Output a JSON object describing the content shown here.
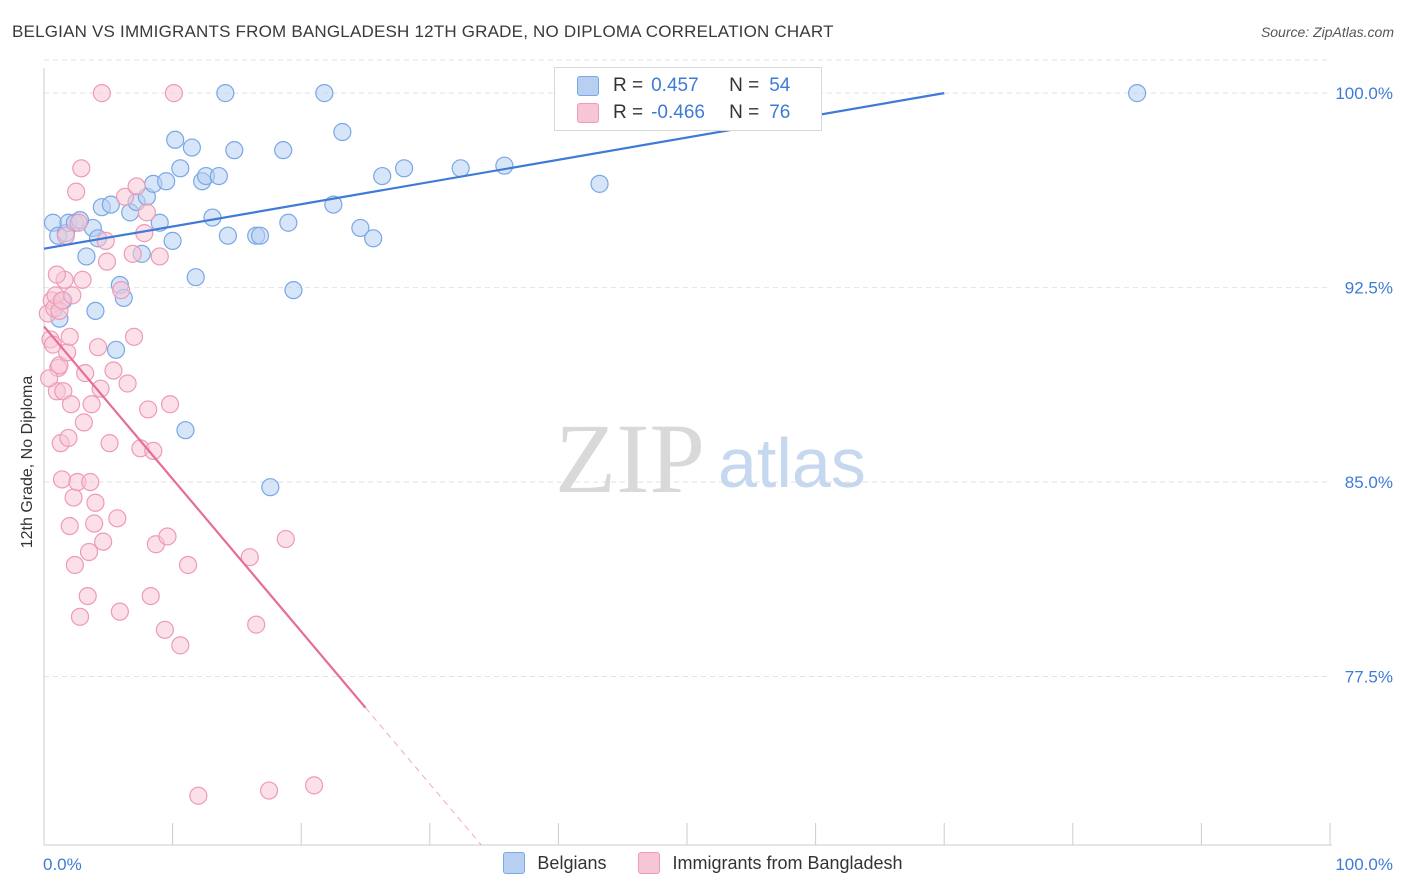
{
  "title": "BELGIAN VS IMMIGRANTS FROM BANGLADESH 12TH GRADE, NO DIPLOMA CORRELATION CHART",
  "source": "Source: ZipAtlas.com",
  "watermark": {
    "zip": "ZIP",
    "atlas": "atlas"
  },
  "legend": {
    "rows": [
      {
        "r_label": "R =",
        "r_value": "0.457",
        "n_label": "N =",
        "n_value": "54"
      },
      {
        "r_label": "R =",
        "r_value": "-0.466",
        "n_label": "N =",
        "n_value": "76"
      }
    ]
  },
  "bottom_legend": [
    "Belgians",
    "Immigrants from Bangladesh"
  ],
  "colors": {
    "blue": "#3e7bd6",
    "blue_fill": "#b7d0f2",
    "blue_stroke": "#7aa7e6",
    "pink": "#e76d98",
    "pink_fill": "#f7c6d6",
    "pink_stroke": "#ee9ab8",
    "tick_label": "#3e7bd6",
    "grid": "#e2e2e2"
  },
  "chart_data": {
    "type": "scatter",
    "title": "BELGIAN VS IMMIGRANTS FROM BANGLADESH 12TH GRADE, NO DIPLOMA CORRELATION CHART",
    "xlabel": "",
    "ylabel": "12th Grade, No Diploma",
    "xlim": [
      0,
      100
    ],
    "ylim": [
      71,
      101.2
    ],
    "x_tick_labels": [
      "0.0%",
      "100.0%"
    ],
    "y_ticks": [
      100.0,
      92.5,
      85.0,
      77.5
    ],
    "y_tick_labels": [
      "100.0%",
      "92.5%",
      "85.0%",
      "77.5%"
    ],
    "series": [
      {
        "name": "Belgians",
        "color": "#3e7bd6",
        "trend": {
          "x": [
            0,
            70
          ],
          "y": [
            94.0,
            100.0
          ],
          "dashed_from": null
        },
        "points": [
          {
            "x": 0.7,
            "y": 95.0
          },
          {
            "x": 1.1,
            "y": 94.5
          },
          {
            "x": 1.7,
            "y": 94.6
          },
          {
            "x": 1.9,
            "y": 95.0
          },
          {
            "x": 2.4,
            "y": 95.0
          },
          {
            "x": 3.3,
            "y": 93.7
          },
          {
            "x": 3.8,
            "y": 94.8
          },
          {
            "x": 4.2,
            "y": 94.4
          },
          {
            "x": 4.5,
            "y": 95.6
          },
          {
            "x": 5.2,
            "y": 95.7
          },
          {
            "x": 5.6,
            "y": 90.1
          },
          {
            "x": 5.9,
            "y": 92.6
          },
          {
            "x": 6.2,
            "y": 92.1
          },
          {
            "x": 6.7,
            "y": 95.4
          },
          {
            "x": 7.2,
            "y": 95.8
          },
          {
            "x": 7.6,
            "y": 93.8
          },
          {
            "x": 8.0,
            "y": 96.0
          },
          {
            "x": 8.5,
            "y": 96.5
          },
          {
            "x": 9.0,
            "y": 95.0
          },
          {
            "x": 9.5,
            "y": 96.6
          },
          {
            "x": 10.0,
            "y": 94.3
          },
          {
            "x": 10.2,
            "y": 98.2
          },
          {
            "x": 10.6,
            "y": 97.1
          },
          {
            "x": 11.0,
            "y": 87.0
          },
          {
            "x": 11.5,
            "y": 97.9
          },
          {
            "x": 11.8,
            "y": 92.9
          },
          {
            "x": 12.3,
            "y": 96.6
          },
          {
            "x": 12.6,
            "y": 96.8
          },
          {
            "x": 13.1,
            "y": 95.2
          },
          {
            "x": 13.6,
            "y": 96.8
          },
          {
            "x": 14.1,
            "y": 100.0
          },
          {
            "x": 14.3,
            "y": 94.5
          },
          {
            "x": 14.8,
            "y": 97.8
          },
          {
            "x": 16.5,
            "y": 94.5
          },
          {
            "x": 16.8,
            "y": 94.5
          },
          {
            "x": 17.6,
            "y": 84.8
          },
          {
            "x": 18.6,
            "y": 97.8
          },
          {
            "x": 19.0,
            "y": 95.0
          },
          {
            "x": 19.4,
            "y": 92.4
          },
          {
            "x": 21.8,
            "y": 100.0
          },
          {
            "x": 22.5,
            "y": 95.7
          },
          {
            "x": 23.2,
            "y": 98.5
          },
          {
            "x": 24.6,
            "y": 94.8
          },
          {
            "x": 25.6,
            "y": 94.4
          },
          {
            "x": 26.3,
            "y": 96.8
          },
          {
            "x": 28.0,
            "y": 97.1
          },
          {
            "x": 32.4,
            "y": 97.1
          },
          {
            "x": 35.8,
            "y": 97.2
          },
          {
            "x": 43.2,
            "y": 96.5
          },
          {
            "x": 85.0,
            "y": 100.0
          },
          {
            "x": 1.2,
            "y": 91.3
          },
          {
            "x": 2.8,
            "y": 95.1
          },
          {
            "x": 4.0,
            "y": 91.6
          },
          {
            "x": 1.5,
            "y": 92.0
          }
        ]
      },
      {
        "name": "Immigrants from Bangladesh",
        "color": "#e76d98",
        "trend": {
          "x": [
            0,
            34
          ],
          "y": [
            91.0,
            71.0
          ],
          "dashed_from": 25
        },
        "points": [
          {
            "x": 0.3,
            "y": 91.5
          },
          {
            "x": 0.5,
            "y": 90.5
          },
          {
            "x": 0.6,
            "y": 92.0
          },
          {
            "x": 0.7,
            "y": 90.3
          },
          {
            "x": 0.8,
            "y": 91.7
          },
          {
            "x": 0.9,
            "y": 92.2
          },
          {
            "x": 1.0,
            "y": 88.5
          },
          {
            "x": 1.1,
            "y": 89.4
          },
          {
            "x": 1.2,
            "y": 89.5
          },
          {
            "x": 1.2,
            "y": 91.6
          },
          {
            "x": 1.3,
            "y": 86.5
          },
          {
            "x": 1.4,
            "y": 85.1
          },
          {
            "x": 1.4,
            "y": 92.0
          },
          {
            "x": 1.5,
            "y": 88.5
          },
          {
            "x": 1.6,
            "y": 92.8
          },
          {
            "x": 1.7,
            "y": 94.5
          },
          {
            "x": 1.8,
            "y": 90.0
          },
          {
            "x": 1.9,
            "y": 86.7
          },
          {
            "x": 2.0,
            "y": 90.6
          },
          {
            "x": 2.0,
            "y": 83.3
          },
          {
            "x": 2.1,
            "y": 88.0
          },
          {
            "x": 2.2,
            "y": 92.2
          },
          {
            "x": 2.3,
            "y": 84.4
          },
          {
            "x": 2.4,
            "y": 81.8
          },
          {
            "x": 2.5,
            "y": 96.2
          },
          {
            "x": 2.6,
            "y": 85.0
          },
          {
            "x": 2.7,
            "y": 95.0
          },
          {
            "x": 2.8,
            "y": 79.8
          },
          {
            "x": 2.9,
            "y": 97.1
          },
          {
            "x": 3.0,
            "y": 92.8
          },
          {
            "x": 3.1,
            "y": 87.3
          },
          {
            "x": 3.2,
            "y": 89.2
          },
          {
            "x": 3.4,
            "y": 80.6
          },
          {
            "x": 3.5,
            "y": 82.3
          },
          {
            "x": 3.7,
            "y": 88.0
          },
          {
            "x": 3.9,
            "y": 83.4
          },
          {
            "x": 4.0,
            "y": 84.2
          },
          {
            "x": 4.2,
            "y": 90.2
          },
          {
            "x": 4.4,
            "y": 88.6
          },
          {
            "x": 4.5,
            "y": 100.0
          },
          {
            "x": 4.6,
            "y": 82.7
          },
          {
            "x": 4.8,
            "y": 94.3
          },
          {
            "x": 5.1,
            "y": 86.5
          },
          {
            "x": 5.4,
            "y": 89.3
          },
          {
            "x": 5.7,
            "y": 83.6
          },
          {
            "x": 5.9,
            "y": 80.0
          },
          {
            "x": 6.3,
            "y": 96.0
          },
          {
            "x": 6.5,
            "y": 88.8
          },
          {
            "x": 6.9,
            "y": 93.8
          },
          {
            "x": 7.2,
            "y": 96.4
          },
          {
            "x": 7.5,
            "y": 86.3
          },
          {
            "x": 7.8,
            "y": 94.6
          },
          {
            "x": 8.0,
            "y": 95.4
          },
          {
            "x": 8.1,
            "y": 87.8
          },
          {
            "x": 8.3,
            "y": 80.6
          },
          {
            "x": 8.5,
            "y": 86.2
          },
          {
            "x": 8.7,
            "y": 82.6
          },
          {
            "x": 9.0,
            "y": 93.7
          },
          {
            "x": 9.4,
            "y": 79.3
          },
          {
            "x": 9.6,
            "y": 82.9
          },
          {
            "x": 10.1,
            "y": 100.0
          },
          {
            "x": 10.6,
            "y": 78.7
          },
          {
            "x": 11.2,
            "y": 81.8
          },
          {
            "x": 12.0,
            "y": 72.9
          },
          {
            "x": 16.0,
            "y": 82.1
          },
          {
            "x": 16.5,
            "y": 79.5
          },
          {
            "x": 17.5,
            "y": 73.1
          },
          {
            "x": 18.8,
            "y": 82.8
          },
          {
            "x": 21.0,
            "y": 73.3
          },
          {
            "x": 0.4,
            "y": 89.0
          },
          {
            "x": 1.0,
            "y": 93.0
          },
          {
            "x": 3.6,
            "y": 85.0
          },
          {
            "x": 4.9,
            "y": 93.5
          },
          {
            "x": 6.0,
            "y": 92.4
          },
          {
            "x": 7.0,
            "y": 90.6
          },
          {
            "x": 9.8,
            "y": 88.0
          }
        ]
      }
    ]
  }
}
